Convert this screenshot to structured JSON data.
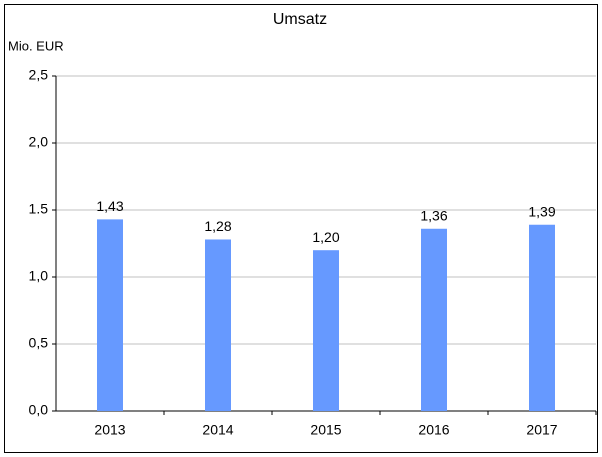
{
  "chart_data": {
    "type": "bar",
    "title": "Umsatz",
    "y_label": "Mio. EUR",
    "categories": [
      "2013",
      "2014",
      "2015",
      "2016",
      "2017"
    ],
    "values": [
      1.43,
      1.28,
      1.2,
      1.36,
      1.39
    ],
    "value_labels": [
      "1,43",
      "1,28",
      "1,20",
      "1,36",
      "1,39"
    ],
    "color": "#6699ff",
    "ylim": [
      0,
      2.5
    ],
    "yticks": [
      {
        "value": 0,
        "label": "0,0"
      },
      {
        "value": 0.5,
        "label": "0,5"
      },
      {
        "value": 1,
        "label": "1,0"
      },
      {
        "value": 1.5,
        "label": "1.5"
      },
      {
        "value": 2,
        "label": "2,0"
      },
      {
        "value": 2.5,
        "label": "2,5"
      }
    ],
    "grid": true
  }
}
